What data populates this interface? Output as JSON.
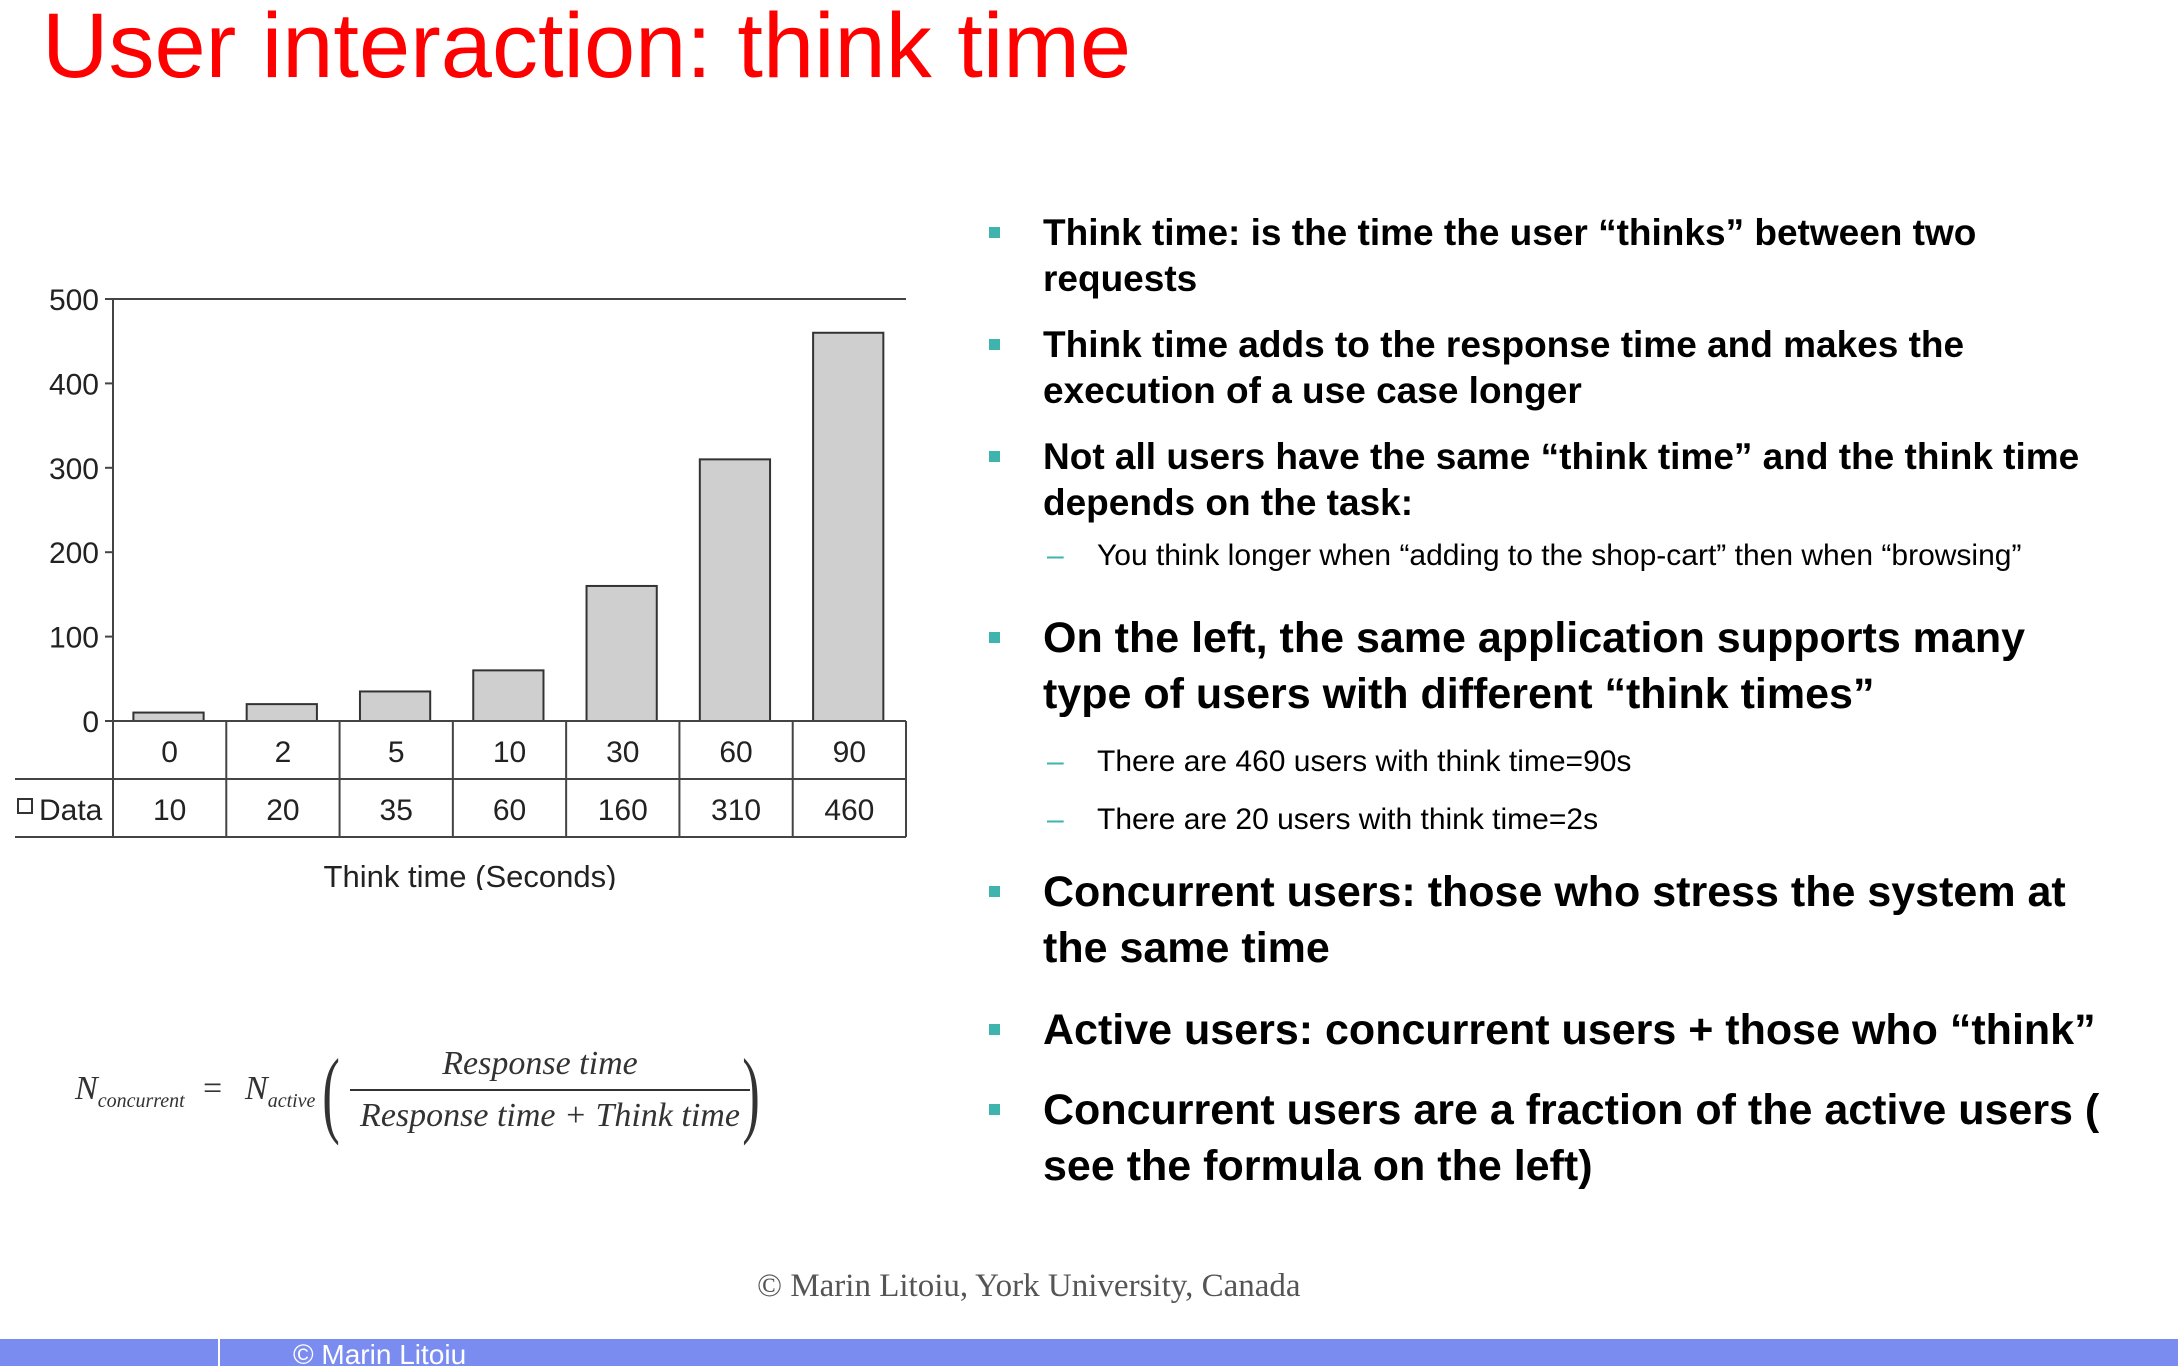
{
  "title": "User interaction: think time",
  "chart_data": {
    "type": "bar",
    "categories": [
      "0",
      "2",
      "5",
      "10",
      "30",
      "60",
      "90"
    ],
    "series": [
      {
        "name": "Data",
        "values": [
          10,
          20,
          35,
          60,
          160,
          310,
          460
        ]
      }
    ],
    "values": [
      10,
      20,
      35,
      60,
      160,
      310,
      460
    ],
    "xlabel": "Think time (Seconds)",
    "ylabel": "",
    "ylim": [
      0,
      500
    ],
    "yticks": [
      "0",
      "100",
      "200",
      "300",
      "400",
      "500"
    ],
    "table_row_label": "Data",
    "grid": false,
    "legend": "in data table row"
  },
  "formula": {
    "lhs": "N",
    "lhs_sub": "concurrent",
    "eq": "=",
    "active": "N",
    "active_sub": "active",
    "numerator": "Response time",
    "denominator": "Response time + Think time"
  },
  "bullets": {
    "b1": "Think time: is the time the user “thinks” between two requests",
    "b2": "Think time adds to the response time and makes the execution of a use case longer",
    "b3": "Not all users have the same “think time” and the think time depends on the task:",
    "b3_sub1": "You think longer when “adding to the shop-cart” then when “browsing”",
    "b4": "On the left, the same application supports many type of users   with different “think times”",
    "b4_sub1": "There are 460 users with think time=90s",
    "b4_sub2": "There are 20 users with think time=2s",
    "b5": "Concurrent users: those who stress the system at the same time",
    "b6": "Active users: concurrent users + those who “think”",
    "b7": "Concurrent users are a fraction of the active users ( see the formula on the left)",
    "dash": "–"
  },
  "watermark": "©  Marin Litoiu, York University, Canada",
  "footer": {
    "text": "© Marin Litoiu"
  },
  "colors": {
    "title": "#ff0000",
    "bullet_marker": "#3fb3ad",
    "footer_bar": "#7b8cf0",
    "bar_fill": "#cfcfcf"
  }
}
